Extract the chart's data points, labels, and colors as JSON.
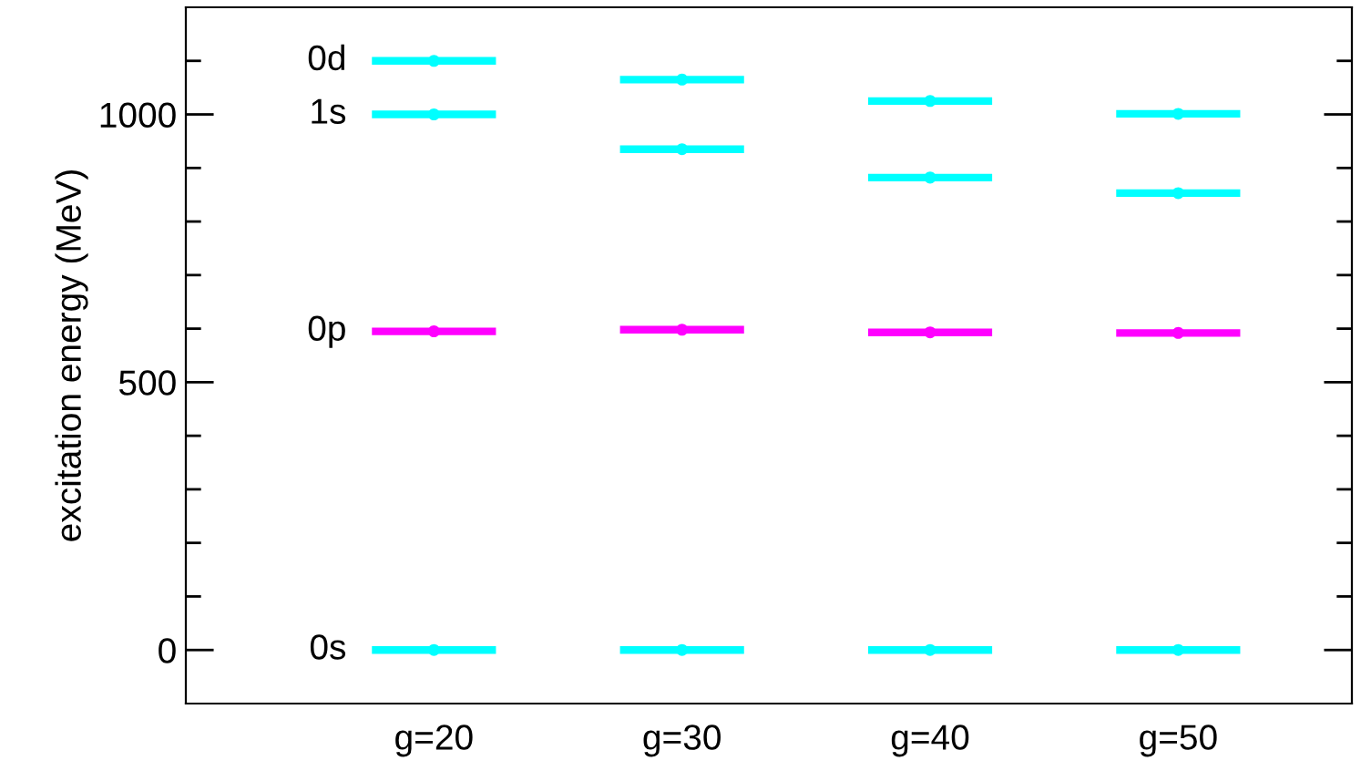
{
  "chart_data": {
    "type": "scatter",
    "ylabel": "excitation energy (MeV)",
    "x": [
      20,
      30,
      40,
      50
    ],
    "series": [
      {
        "name": "0s",
        "color": "#00ffff",
        "values": [
          0,
          0,
          0,
          0
        ],
        "xerrors": [
          2.5,
          2.5,
          2.5,
          2.5
        ]
      },
      {
        "name": "0p",
        "color": "#ff00ff",
        "values": [
          595,
          598,
          593,
          592
        ],
        "xerrors": [
          2.5,
          2.5,
          2.5,
          2.5
        ]
      },
      {
        "name": "1s",
        "color": "#00ffff",
        "values": [
          1000,
          935,
          882,
          853
        ],
        "xerrors": [
          2.5,
          2.5,
          2.5,
          2.5
        ]
      },
      {
        "name": "0d",
        "color": "#00ffff",
        "values": [
          1100,
          1065,
          1025,
          1001
        ],
        "xerrors": [
          2.5,
          2.5,
          2.5,
          2.5
        ]
      }
    ],
    "xlim": [
      10,
      57
    ],
    "xticks": [
      {
        "value": 20,
        "label": "g=20"
      },
      {
        "value": 30,
        "label": "g=30"
      },
      {
        "value": 40,
        "label": "g=40"
      },
      {
        "value": 50,
        "label": "g=50"
      }
    ],
    "ylim": [
      -100,
      1200
    ],
    "yticks": [
      0,
      {
        "value": 100,
        "label": null
      },
      {
        "value": 200,
        "label": null
      },
      {
        "value": 300,
        "label": null
      },
      {
        "value": 400,
        "label": null
      },
      500,
      {
        "value": 600,
        "label": null
      },
      {
        "value": 700,
        "label": null
      },
      {
        "value": 800,
        "label": null
      },
      {
        "value": 900,
        "label": null
      },
      1000,
      {
        "value": 1100,
        "label": null
      }
    ],
    "grid": false,
    "legend": "left"
  }
}
